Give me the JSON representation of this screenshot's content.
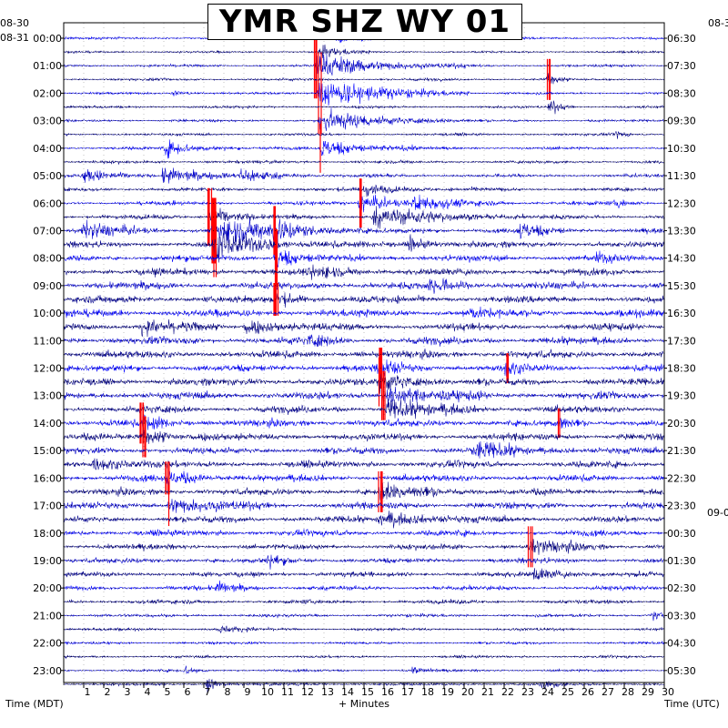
{
  "title": "YMR SHZ WY 01",
  "chart_data": {
    "type": "helicorder",
    "title": "YMR SHZ WY 01",
    "xlabel": "+ Minutes",
    "x_ticks": [
      "1",
      "2",
      "3",
      "4",
      "5",
      "6",
      "7",
      "8",
      "9",
      "10",
      "11",
      "12",
      "13",
      "14",
      "15",
      "16",
      "17",
      "18",
      "19",
      "20",
      "21",
      "22",
      "23",
      "24",
      "25",
      "26",
      "27",
      "28",
      "29",
      "30"
    ],
    "xlim": [
      0,
      30
    ],
    "left_axis_label": "Time (MDT)",
    "right_axis_label": "Time (UTC)",
    "left_date_labels": [
      "08-30",
      "08-31"
    ],
    "right_date_labels": [
      "09-0"
    ],
    "left_time_labels": [
      "00:00",
      "01:00",
      "02:00",
      "03:00",
      "04:00",
      "05:00",
      "06:00",
      "07:00",
      "08:00",
      "09:00",
      "10:00",
      "11:00",
      "12:00",
      "13:00",
      "14:00",
      "15:00",
      "16:00",
      "17:00",
      "18:00",
      "19:00",
      "20:00",
      "21:00",
      "22:00",
      "23:00"
    ],
    "right_time_labels": [
      "06:30",
      "07:30",
      "08:30",
      "09:30",
      "10:30",
      "11:30",
      "12:30",
      "13:30",
      "14:30",
      "15:30",
      "16:30",
      "17:30",
      "18:30",
      "19:30",
      "20:30",
      "21:30",
      "22:30",
      "23:30",
      "00:30",
      "01:30",
      "02:30",
      "03:30",
      "04:30",
      "05:30"
    ],
    "rows_per_hour": 2,
    "row_count": 48,
    "trace_colors": [
      "#0000ff",
      "#000080",
      "#0000cd",
      "#00008b"
    ],
    "clip_color": "#ff0000",
    "background": "#ffffff",
    "grid": true,
    "noise_amplitude_by_row": [
      0.35,
      0.3,
      0.35,
      0.35,
      0.35,
      0.35,
      0.35,
      0.35,
      0.4,
      0.4,
      0.45,
      0.5,
      0.55,
      0.6,
      0.75,
      0.8,
      0.85,
      0.9,
      0.95,
      1.0,
      1.0,
      0.95,
      1.0,
      1.0,
      0.95,
      0.95,
      1.0,
      0.95,
      0.95,
      0.95,
      0.9,
      0.9,
      0.9,
      0.9,
      0.9,
      0.85,
      0.8,
      0.75,
      0.7,
      0.65,
      0.6,
      0.55,
      0.45,
      0.4,
      0.35,
      0.35,
      0.35,
      0.35
    ],
    "events": [
      {
        "row": 0,
        "minute": 13.7,
        "amp": 1.2,
        "dur": 1.5
      },
      {
        "row": 1,
        "minute": 12.8,
        "amp": 2.0,
        "dur": 1.0
      },
      {
        "row": 2,
        "minute": 12.6,
        "amp": 4.0,
        "dur": 3.0,
        "clip": true
      },
      {
        "row": 3,
        "minute": 24.2,
        "amp": 2.5,
        "dur": 0.4,
        "clip": true
      },
      {
        "row": 4,
        "minute": 12.8,
        "amp": 5.0,
        "dur": 3.0,
        "clip": true
      },
      {
        "row": 4,
        "minute": 5.5,
        "amp": 1.0,
        "dur": 0.6
      },
      {
        "row": 5,
        "minute": 24.3,
        "amp": 2.5,
        "dur": 0.5
      },
      {
        "row": 6,
        "minute": 12.8,
        "amp": 3.5,
        "dur": 3.0
      },
      {
        "row": 7,
        "minute": 27.6,
        "amp": 1.2,
        "dur": 0.4
      },
      {
        "row": 8,
        "minute": 5.1,
        "amp": 2.5,
        "dur": 1.5
      },
      {
        "row": 8,
        "minute": 12.9,
        "amp": 3.0,
        "dur": 2.0,
        "clip": true
      },
      {
        "row": 10,
        "minute": 1.0,
        "amp": 2.0,
        "dur": 1.5
      },
      {
        "row": 10,
        "minute": 5.0,
        "amp": 3.0,
        "dur": 1.5
      },
      {
        "row": 10,
        "minute": 8.9,
        "amp": 2.5,
        "dur": 1.5
      },
      {
        "row": 11,
        "minute": 15.0,
        "amp": 2.0,
        "dur": 1.5
      },
      {
        "row": 12,
        "minute": 14.8,
        "amp": 3.0,
        "dur": 1.5,
        "clip": true
      },
      {
        "row": 12,
        "minute": 17.5,
        "amp": 2.0,
        "dur": 2.0
      },
      {
        "row": 12,
        "minute": 27.6,
        "amp": 1.3,
        "dur": 0.6
      },
      {
        "row": 13,
        "minute": 7.3,
        "amp": 3.5,
        "dur": 1.0,
        "clip": true
      },
      {
        "row": 13,
        "minute": 15.5,
        "amp": 3.0,
        "dur": 3.0
      },
      {
        "row": 14,
        "minute": 1.0,
        "amp": 2.5,
        "dur": 1.5
      },
      {
        "row": 14,
        "minute": 7.5,
        "amp": 4.0,
        "dur": 3.0,
        "clip": true
      },
      {
        "row": 14,
        "minute": 10.5,
        "amp": 3.0,
        "dur": 1.0,
        "clip": true
      },
      {
        "row": 14,
        "minute": 22.8,
        "amp": 2.5,
        "dur": 1.0
      },
      {
        "row": 15,
        "minute": 7.5,
        "amp": 4.0,
        "dur": 2.5,
        "clip": true
      },
      {
        "row": 15,
        "minute": 17.3,
        "amp": 2.0,
        "dur": 1.0
      },
      {
        "row": 16,
        "minute": 10.6,
        "amp": 3.5,
        "dur": 1.0,
        "clip": true
      },
      {
        "row": 16,
        "minute": 26.6,
        "amp": 1.5,
        "dur": 0.8
      },
      {
        "row": 17,
        "minute": 12.4,
        "amp": 2.0,
        "dur": 1.5
      },
      {
        "row": 18,
        "minute": 18.3,
        "amp": 2.0,
        "dur": 1.5
      },
      {
        "row": 19,
        "minute": 10.6,
        "amp": 2.0,
        "dur": 1.0,
        "clip": true
      },
      {
        "row": 20,
        "minute": 20.0,
        "amp": 1.5,
        "dur": 1.0
      },
      {
        "row": 21,
        "minute": 9.1,
        "amp": 2.5,
        "dur": 1.5
      },
      {
        "row": 21,
        "minute": 3.9,
        "amp": 2.0,
        "dur": 1.5
      },
      {
        "row": 22,
        "minute": 12.3,
        "amp": 1.5,
        "dur": 1.0
      },
      {
        "row": 24,
        "minute": 15.8,
        "amp": 2.5,
        "dur": 1.0,
        "clip": true
      },
      {
        "row": 24,
        "minute": 22.1,
        "amp": 1.8,
        "dur": 0.5,
        "clip": true
      },
      {
        "row": 25,
        "minute": 15.8,
        "amp": 3.0,
        "dur": 1.5,
        "clip": true
      },
      {
        "row": 26,
        "minute": 16.0,
        "amp": 3.0,
        "dur": 2.0,
        "clip": true
      },
      {
        "row": 27,
        "minute": 16.2,
        "amp": 3.0,
        "dur": 2.0
      },
      {
        "row": 28,
        "minute": 3.9,
        "amp": 2.5,
        "dur": 1.0,
        "clip": true
      },
      {
        "row": 28,
        "minute": 24.8,
        "amp": 1.8,
        "dur": 0.5,
        "clip": true
      },
      {
        "row": 29,
        "minute": 4.0,
        "amp": 2.5,
        "dur": 1.5,
        "clip": true
      },
      {
        "row": 30,
        "minute": 20.5,
        "amp": 2.5,
        "dur": 2.0
      },
      {
        "row": 31,
        "minute": 1.5,
        "amp": 2.0,
        "dur": 1.5
      },
      {
        "row": 32,
        "minute": 5.2,
        "amp": 2.0,
        "dur": 1.5,
        "clip": true
      },
      {
        "row": 33,
        "minute": 15.8,
        "amp": 2.5,
        "dur": 2.0,
        "clip": true
      },
      {
        "row": 34,
        "minute": 5.3,
        "amp": 2.5,
        "dur": 2.0,
        "clip": true
      },
      {
        "row": 35,
        "minute": 15.8,
        "amp": 2.5,
        "dur": 2.0
      },
      {
        "row": 37,
        "minute": 23.3,
        "amp": 2.5,
        "dur": 1.5,
        "clip": true
      },
      {
        "row": 38,
        "minute": 10.2,
        "amp": 1.5,
        "dur": 1.0
      },
      {
        "row": 39,
        "minute": 23.5,
        "amp": 2.0,
        "dur": 1.5
      },
      {
        "row": 40,
        "minute": 7.7,
        "amp": 1.8,
        "dur": 1.0
      },
      {
        "row": 42,
        "minute": 29.4,
        "amp": 1.2,
        "dur": 1.0
      },
      {
        "row": 43,
        "minute": 7.8,
        "amp": 1.2,
        "dur": 0.8
      },
      {
        "row": 46,
        "minute": 6.1,
        "amp": 1.5,
        "dur": 0.5
      },
      {
        "row": 46,
        "minute": 17.5,
        "amp": 1.2,
        "dur": 0.5
      },
      {
        "row": 47,
        "minute": 7.2,
        "amp": 2.0,
        "dur": 0.5
      },
      {
        "row": 47,
        "minute": 23.9,
        "amp": 2.0,
        "dur": 0.5
      }
    ]
  }
}
